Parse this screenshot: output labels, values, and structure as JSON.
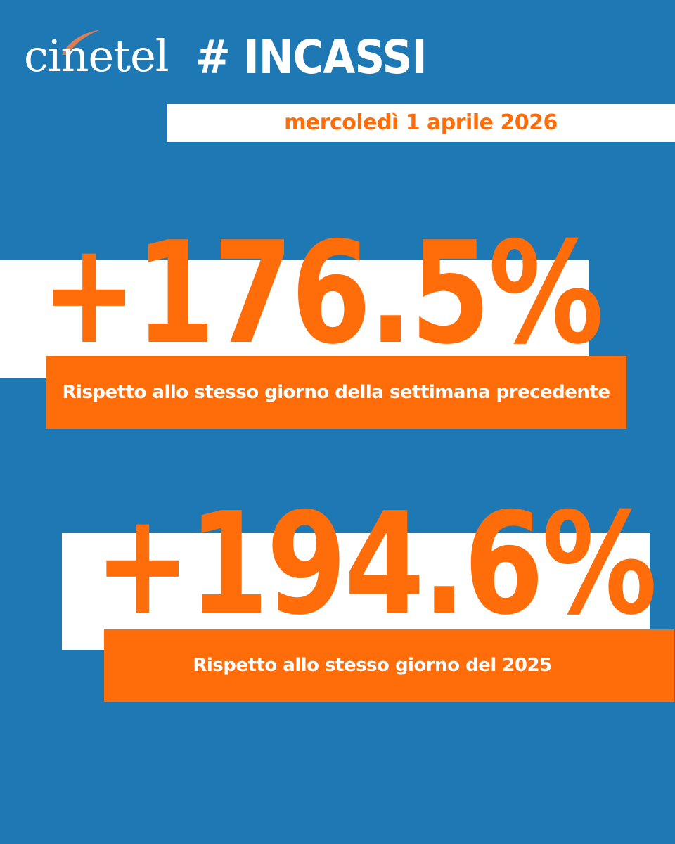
{
  "brand": {
    "logo_text": "cinetel",
    "hashtag": "# INCASSI"
  },
  "date": "mercoledì 1 aprile 2026",
  "stats": [
    {
      "value": "+176.5%",
      "label": "Rispetto allo stesso giorno della settimana precedente"
    },
    {
      "value": "+194.6%",
      "label": "Rispetto allo stesso giorno del 2025"
    }
  ],
  "colors": {
    "background": "#1e78b4",
    "accent": "#ff6c0a",
    "white": "#ffffff"
  }
}
